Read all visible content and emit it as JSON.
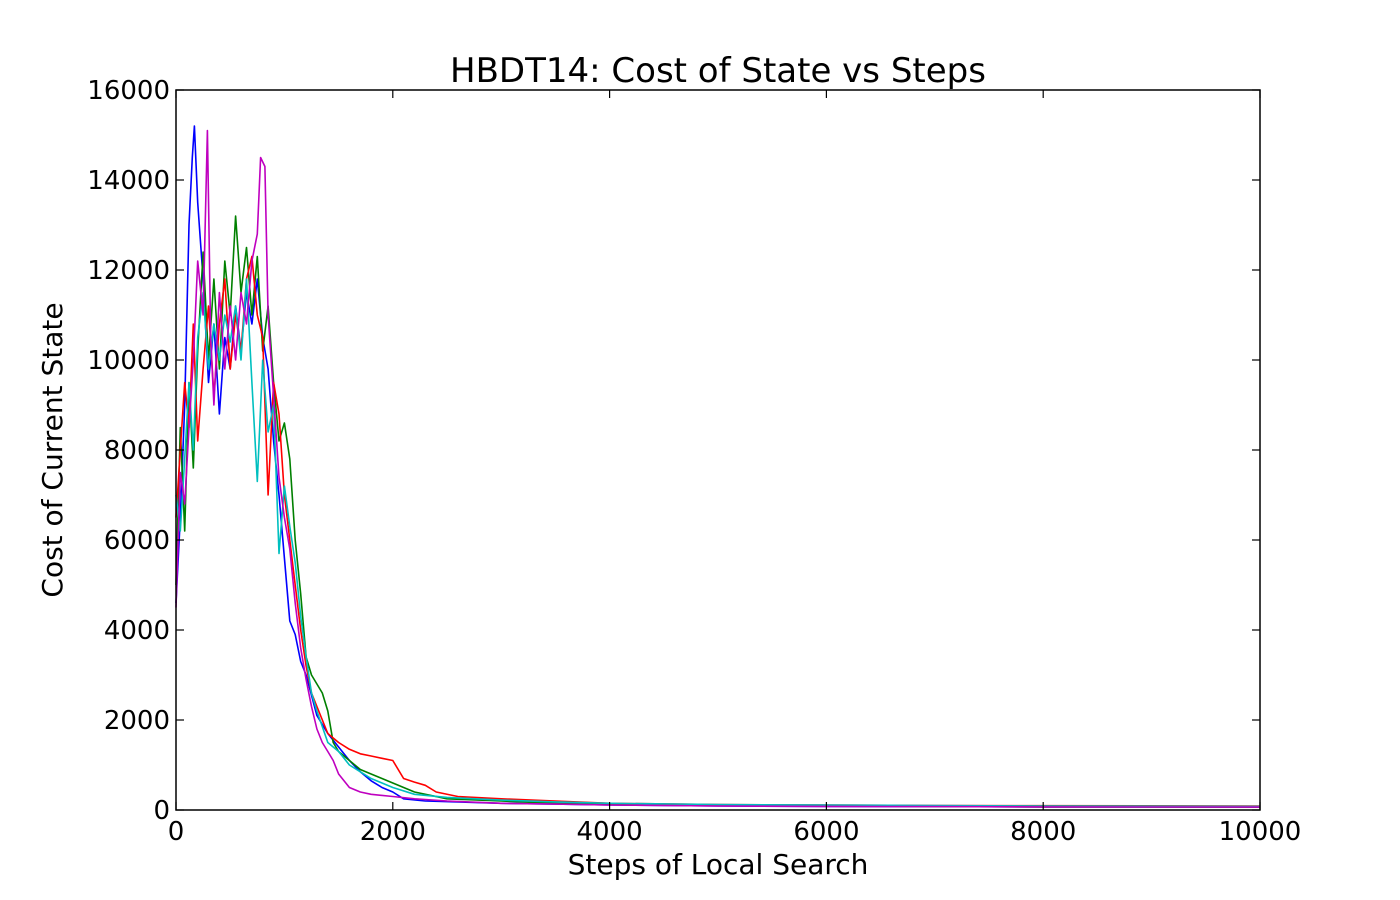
{
  "chart_data": {
    "type": "line",
    "title": "HBDT14: Cost of State vs Steps",
    "xlabel": "Steps of Local Search",
    "ylabel": "Cost of Current State",
    "xlim": [
      0,
      10000
    ],
    "ylim": [
      0,
      16000
    ],
    "x_ticks": [
      0,
      2000,
      4000,
      6000,
      8000,
      10000
    ],
    "y_ticks": [
      0,
      2000,
      4000,
      6000,
      8000,
      10000,
      12000,
      14000,
      16000
    ],
    "x_tick_labels": [
      "0",
      "2000",
      "4000",
      "6000",
      "8000",
      "10000"
    ],
    "y_tick_labels": [
      "0",
      "2000",
      "4000",
      "6000",
      "8000",
      "10000",
      "12000",
      "14000",
      "16000"
    ],
    "grid": false,
    "legend": "none",
    "series": [
      {
        "color": "#0000ff",
        "points": [
          [
            0,
            4600
          ],
          [
            40,
            6500
          ],
          [
            80,
            9000
          ],
          [
            120,
            13000
          ],
          [
            150,
            14500
          ],
          [
            170,
            15200
          ],
          [
            200,
            13500
          ],
          [
            250,
            11800
          ],
          [
            300,
            9500
          ],
          [
            350,
            10800
          ],
          [
            400,
            8800
          ],
          [
            450,
            10500
          ],
          [
            500,
            9800
          ],
          [
            550,
            11200
          ],
          [
            600,
            10200
          ],
          [
            650,
            11500
          ],
          [
            700,
            10800
          ],
          [
            750,
            11800
          ],
          [
            800,
            10500
          ],
          [
            850,
            9800
          ],
          [
            900,
            8200
          ],
          [
            950,
            7000
          ],
          [
            1000,
            5600
          ],
          [
            1050,
            4200
          ],
          [
            1100,
            3900
          ],
          [
            1150,
            3300
          ],
          [
            1200,
            3000
          ],
          [
            1300,
            2100
          ],
          [
            1400,
            1700
          ],
          [
            1500,
            1400
          ],
          [
            1600,
            1100
          ],
          [
            1700,
            850
          ],
          [
            1800,
            650
          ],
          [
            1900,
            500
          ],
          [
            2000,
            400
          ],
          [
            2100,
            250
          ],
          [
            2300,
            200
          ],
          [
            2600,
            180
          ],
          [
            3000,
            150
          ],
          [
            3500,
            130
          ],
          [
            4000,
            110
          ],
          [
            5000,
            90
          ],
          [
            6000,
            80
          ],
          [
            7000,
            75
          ],
          [
            8000,
            70
          ],
          [
            10000,
            65
          ]
        ]
      },
      {
        "color": "#008000",
        "points": [
          [
            0,
            5000
          ],
          [
            40,
            8500
          ],
          [
            80,
            6200
          ],
          [
            120,
            9500
          ],
          [
            160,
            7600
          ],
          [
            200,
            10200
          ],
          [
            250,
            12400
          ],
          [
            300,
            10000
          ],
          [
            350,
            11800
          ],
          [
            400,
            9800
          ],
          [
            450,
            12200
          ],
          [
            500,
            11000
          ],
          [
            550,
            13200
          ],
          [
            600,
            11500
          ],
          [
            650,
            12500
          ],
          [
            700,
            11000
          ],
          [
            750,
            12300
          ],
          [
            800,
            10200
          ],
          [
            850,
            11200
          ],
          [
            900,
            9500
          ],
          [
            950,
            8200
          ],
          [
            1000,
            8600
          ],
          [
            1050,
            7800
          ],
          [
            1100,
            6000
          ],
          [
            1150,
            4800
          ],
          [
            1200,
            3400
          ],
          [
            1250,
            3000
          ],
          [
            1300,
            2800
          ],
          [
            1350,
            2600
          ],
          [
            1400,
            2200
          ],
          [
            1450,
            1500
          ],
          [
            1500,
            1300
          ],
          [
            1600,
            1100
          ],
          [
            1700,
            900
          ],
          [
            1800,
            800
          ],
          [
            1900,
            700
          ],
          [
            2000,
            600
          ],
          [
            2200,
            400
          ],
          [
            2500,
            250
          ],
          [
            3000,
            200
          ],
          [
            3500,
            150
          ],
          [
            4000,
            120
          ],
          [
            5000,
            100
          ],
          [
            6000,
            90
          ],
          [
            7000,
            80
          ],
          [
            8000,
            70
          ],
          [
            10000,
            65
          ]
        ]
      },
      {
        "color": "#ff0000",
        "points": [
          [
            0,
            6500
          ],
          [
            40,
            8000
          ],
          [
            80,
            9500
          ],
          [
            120,
            8500
          ],
          [
            160,
            10800
          ],
          [
            200,
            8200
          ],
          [
            250,
            9800
          ],
          [
            300,
            11200
          ],
          [
            350,
            9200
          ],
          [
            400,
            10800
          ],
          [
            450,
            11800
          ],
          [
            500,
            9800
          ],
          [
            550,
            11000
          ],
          [
            600,
            10200
          ],
          [
            650,
            11800
          ],
          [
            700,
            12300
          ],
          [
            750,
            11000
          ],
          [
            800,
            10500
          ],
          [
            850,
            7000
          ],
          [
            900,
            9500
          ],
          [
            950,
            8800
          ],
          [
            1000,
            7000
          ],
          [
            1050,
            6000
          ],
          [
            1100,
            5000
          ],
          [
            1150,
            4000
          ],
          [
            1200,
            3200
          ],
          [
            1250,
            2600
          ],
          [
            1300,
            2300
          ],
          [
            1400,
            1700
          ],
          [
            1500,
            1500
          ],
          [
            1600,
            1350
          ],
          [
            1700,
            1250
          ],
          [
            1800,
            1200
          ],
          [
            1900,
            1150
          ],
          [
            2000,
            1100
          ],
          [
            2100,
            700
          ],
          [
            2200,
            620
          ],
          [
            2300,
            550
          ],
          [
            2400,
            400
          ],
          [
            2600,
            300
          ],
          [
            3000,
            250
          ],
          [
            3500,
            200
          ],
          [
            4000,
            150
          ],
          [
            5000,
            120
          ],
          [
            6000,
            110
          ],
          [
            7000,
            100
          ],
          [
            8000,
            95
          ],
          [
            10000,
            90
          ]
        ]
      },
      {
        "color": "#00bfbf",
        "points": [
          [
            0,
            7000
          ],
          [
            40,
            6200
          ],
          [
            80,
            7800
          ],
          [
            120,
            9500
          ],
          [
            160,
            8000
          ],
          [
            200,
            10500
          ],
          [
            250,
            11500
          ],
          [
            300,
            9800
          ],
          [
            350,
            10800
          ],
          [
            400,
            10000
          ],
          [
            450,
            11000
          ],
          [
            500,
            10400
          ],
          [
            550,
            11200
          ],
          [
            600,
            10000
          ],
          [
            650,
            11800
          ],
          [
            700,
            9500
          ],
          [
            750,
            7300
          ],
          [
            800,
            10000
          ],
          [
            850,
            8400
          ],
          [
            900,
            9000
          ],
          [
            950,
            5700
          ],
          [
            1000,
            7200
          ],
          [
            1050,
            6300
          ],
          [
            1100,
            5500
          ],
          [
            1150,
            4300
          ],
          [
            1200,
            3400
          ],
          [
            1250,
            2600
          ],
          [
            1300,
            2200
          ],
          [
            1400,
            1500
          ],
          [
            1500,
            1300
          ],
          [
            1600,
            1000
          ],
          [
            1700,
            850
          ],
          [
            1800,
            700
          ],
          [
            1900,
            600
          ],
          [
            2000,
            500
          ],
          [
            2200,
            350
          ],
          [
            2500,
            280
          ],
          [
            3000,
            220
          ],
          [
            3500,
            180
          ],
          [
            4000,
            150
          ],
          [
            5000,
            120
          ],
          [
            6000,
            110
          ],
          [
            7000,
            100
          ],
          [
            8000,
            90
          ],
          [
            10000,
            80
          ]
        ]
      },
      {
        "color": "#bf00bf",
        "points": [
          [
            0,
            4500
          ],
          [
            40,
            7500
          ],
          [
            80,
            6800
          ],
          [
            120,
            8500
          ],
          [
            160,
            10000
          ],
          [
            200,
            12200
          ],
          [
            250,
            11000
          ],
          [
            290,
            15100
          ],
          [
            320,
            10500
          ],
          [
            350,
            9000
          ],
          [
            400,
            11500
          ],
          [
            450,
            9800
          ],
          [
            500,
            11200
          ],
          [
            550,
            10000
          ],
          [
            600,
            11500
          ],
          [
            650,
            10800
          ],
          [
            700,
            12200
          ],
          [
            750,
            12800
          ],
          [
            780,
            14500
          ],
          [
            820,
            14300
          ],
          [
            850,
            11000
          ],
          [
            900,
            9200
          ],
          [
            950,
            7400
          ],
          [
            1000,
            6500
          ],
          [
            1050,
            5800
          ],
          [
            1100,
            4600
          ],
          [
            1150,
            3600
          ],
          [
            1200,
            2900
          ],
          [
            1250,
            2300
          ],
          [
            1300,
            1800
          ],
          [
            1350,
            1500
          ],
          [
            1400,
            1300
          ],
          [
            1450,
            1100
          ],
          [
            1500,
            800
          ],
          [
            1600,
            500
          ],
          [
            1700,
            400
          ],
          [
            1800,
            350
          ],
          [
            2000,
            300
          ],
          [
            2200,
            250
          ],
          [
            2500,
            200
          ],
          [
            3000,
            150
          ],
          [
            3500,
            130
          ],
          [
            4000,
            110
          ],
          [
            5000,
            90
          ],
          [
            6000,
            80
          ],
          [
            7000,
            75
          ],
          [
            8000,
            70
          ],
          [
            10000,
            65
          ]
        ]
      }
    ]
  }
}
